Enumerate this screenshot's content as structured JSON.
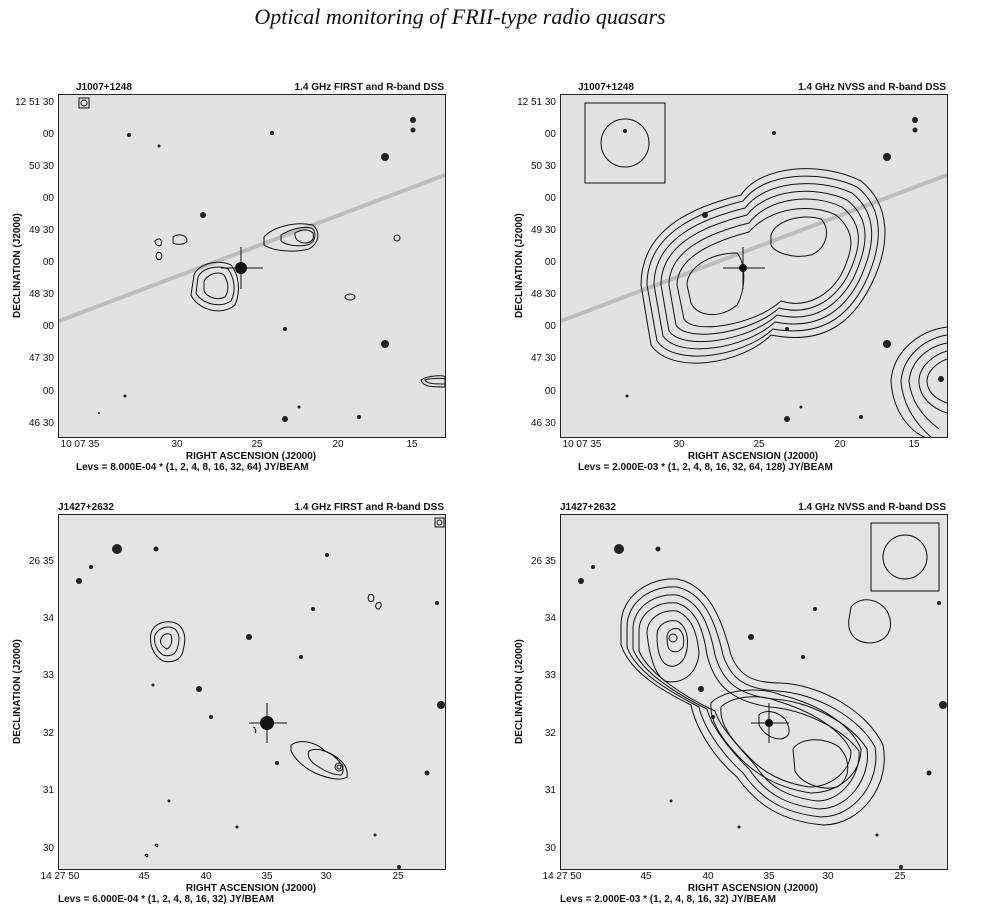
{
  "page_title": "Optical monitoring of FRII-type radio quasars",
  "axis_labels": {
    "x": "RIGHT ASCENSION (J2000)",
    "y": "DECLINATION (J2000)"
  },
  "panels": [
    {
      "source": "J1007+1248",
      "title": "1.4 GHz FIRST and R-band DSS",
      "y_ticks": [
        "12 51 30",
        "00",
        "50 30",
        "00",
        "49 30",
        "00",
        "48 30",
        "00",
        "47 30",
        "00",
        "46 30"
      ],
      "x_ticks": [
        "10 07 35",
        "30",
        "25",
        "20",
        "15"
      ],
      "levels": "Levs = 8.000E-04 * (1, 2, 4, 8, 16, 32, 64) JY/BEAM"
    },
    {
      "source": "J1007+1248",
      "title": "1.4 GHz NVSS and R-band DSS",
      "y_ticks": [
        "12 51 30",
        "00",
        "50 30",
        "00",
        "49 30",
        "00",
        "48 30",
        "00",
        "47 30",
        "00",
        "46 30"
      ],
      "x_ticks": [
        "10 07 35",
        "30",
        "25",
        "20",
        "15"
      ],
      "levels": "Levs = 2.000E-03 * (1, 2, 4, 8, 16, 32, 64, 128) JY/BEAM"
    },
    {
      "source": "J1427+2632",
      "title": "1.4 GHz FIRST and R-band DSS",
      "y_ticks": [
        "26 35",
        "34",
        "33",
        "32",
        "31",
        "30"
      ],
      "x_ticks": [
        "14 27 50",
        "45",
        "40",
        "35",
        "30",
        "25"
      ],
      "levels": "Levs = 6.000E-04 * (1, 2, 4, 8, 16, 32) JY/BEAM"
    },
    {
      "source": "J1427+2632",
      "title": "1.4 GHz NVSS and R-band DSS",
      "y_ticks": [
        "26 35",
        "34",
        "33",
        "32",
        "31",
        "30"
      ],
      "x_ticks": [
        "14 27 50",
        "45",
        "40",
        "35",
        "30",
        "25"
      ],
      "levels": "Levs = 2.000E-03 * (1, 2, 4, 8, 16, 32) JY/BEAM"
    }
  ]
}
